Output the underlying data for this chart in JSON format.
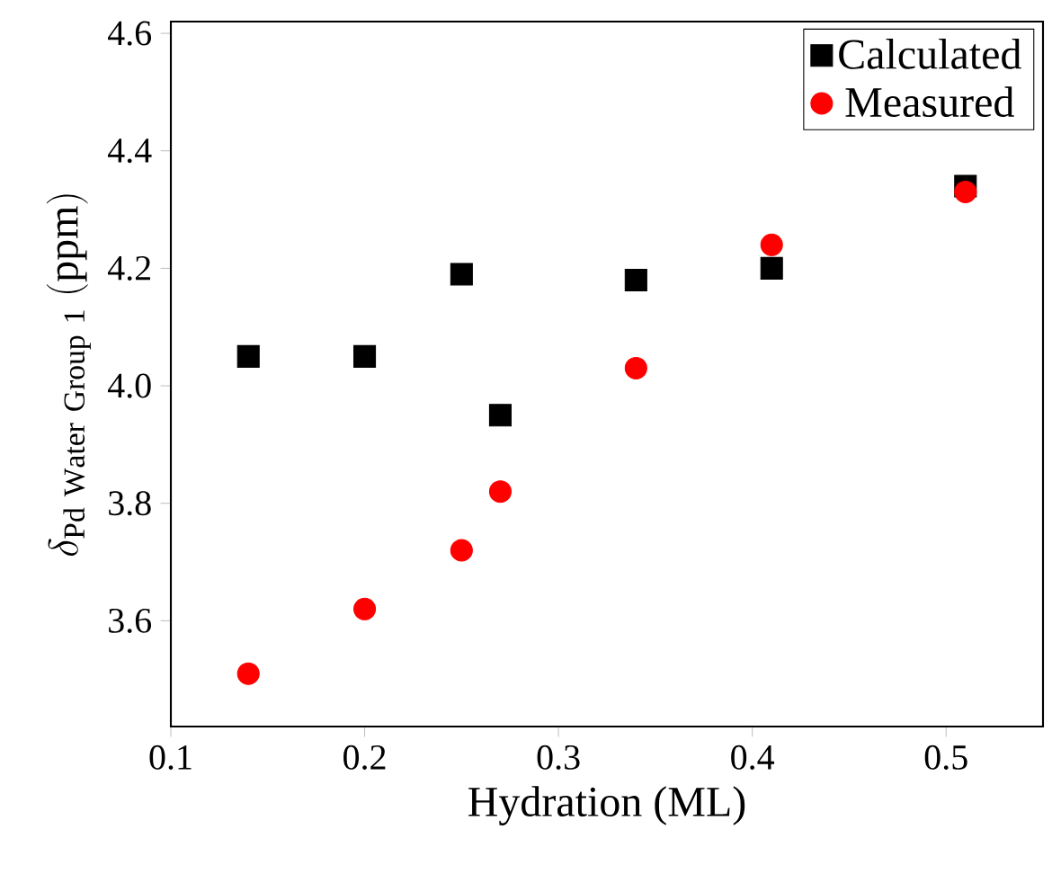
{
  "chart_data": {
    "type": "scatter",
    "xlabel": "Hydration (ML)",
    "ylabel": "\\delta_{\\mathrm{Pd\\ Water\\ Group\\ 1}}\\ \\mathrm{(ppm)}",
    "xlim": [
      0.1,
      0.55
    ],
    "xticks": [
      0.1,
      0.2,
      0.3,
      0.4,
      0.5
    ],
    "ylim": [
      3.42,
      4.62
    ],
    "yticks": [
      3.6,
      3.8,
      {
        "value": 4.0,
        "label": "4.0"
      },
      4.2,
      4.4,
      4.6
    ],
    "grid": false,
    "legend": "top right",
    "series": [
      {
        "name": "Calculated",
        "color": "#000000",
        "marker": "square",
        "x": [
          0.14,
          0.2,
          0.25,
          0.27,
          0.34,
          0.41,
          0.51
        ],
        "values": [
          4.05,
          4.05,
          4.19,
          3.95,
          4.18,
          4.2,
          4.34
        ]
      },
      {
        "name": "Measured",
        "color": "#ff0000",
        "marker": "circle",
        "x": [
          0.14,
          0.2,
          0.25,
          0.27,
          0.34,
          0.41,
          0.51
        ],
        "values": [
          3.51,
          3.62,
          3.72,
          3.82,
          4.03,
          4.24,
          4.33
        ]
      }
    ]
  }
}
